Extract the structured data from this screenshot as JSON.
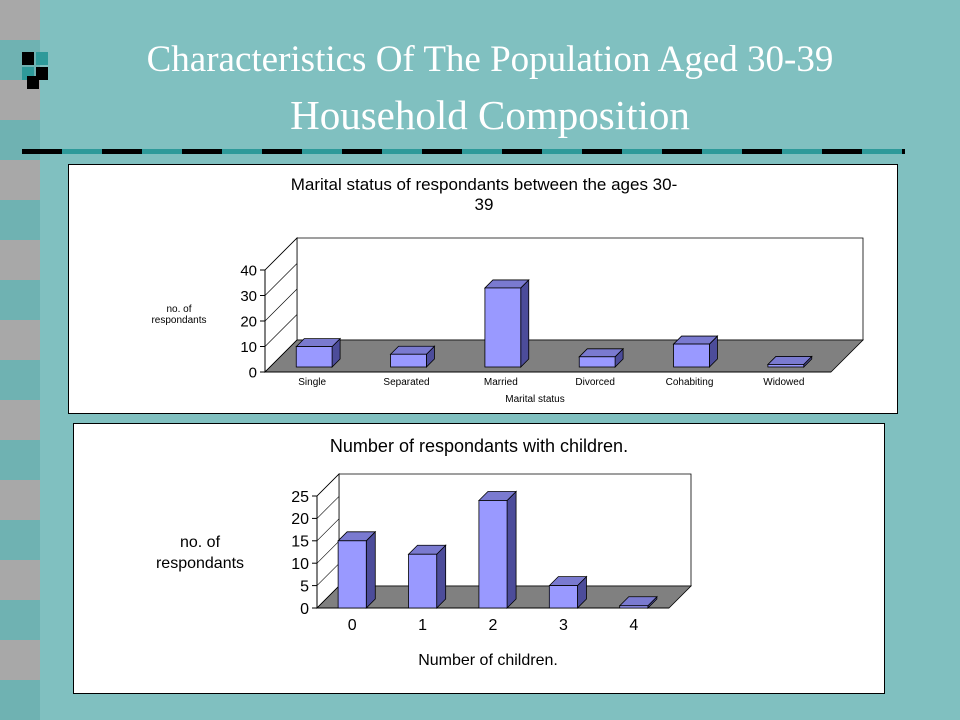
{
  "slide": {
    "title_line1": "Characteristics Of The Population Aged 30-39",
    "title_line2": "Household Composition"
  },
  "colors": {
    "background": "#80C0C0",
    "bar_front": "#9999FF",
    "bar_side": "#4C4C9A",
    "bar_top": "#7A7AD0",
    "floor": "#808080",
    "accent_dark": "#000000",
    "accent_teal": "#2E9A9A"
  },
  "chart_data": [
    {
      "type": "bar",
      "title": "Marital status of respondants between the ages 30-39",
      "title_lines": [
        "Marital status of respondants between the ages 30-",
        "39"
      ],
      "xlabel": "Marital status",
      "ylabel": "no. of respondants",
      "ylabel_lines": [
        "no. of",
        "respondants"
      ],
      "categories": [
        "Single",
        "Separated",
        "Married",
        "Divorced",
        "Cohabiting",
        "Widowed"
      ],
      "values": [
        8,
        5,
        31,
        4,
        9,
        1
      ],
      "ylim": [
        0,
        40
      ],
      "yticks": [
        0,
        10,
        20,
        30,
        40
      ],
      "grid": false,
      "legend": "none",
      "style": "3d"
    },
    {
      "type": "bar",
      "title": "Number of respondants with children.",
      "xlabel": "Number of children.",
      "ylabel": "no. of respondants",
      "ylabel_lines": [
        "no. of",
        "respondants"
      ],
      "categories": [
        "0",
        "1",
        "2",
        "3",
        "4"
      ],
      "values": [
        15,
        12,
        24,
        5,
        0.5
      ],
      "ylim": [
        0,
        25
      ],
      "yticks": [
        0,
        5,
        10,
        15,
        20,
        25
      ],
      "grid": false,
      "legend": "none",
      "style": "3d"
    }
  ]
}
